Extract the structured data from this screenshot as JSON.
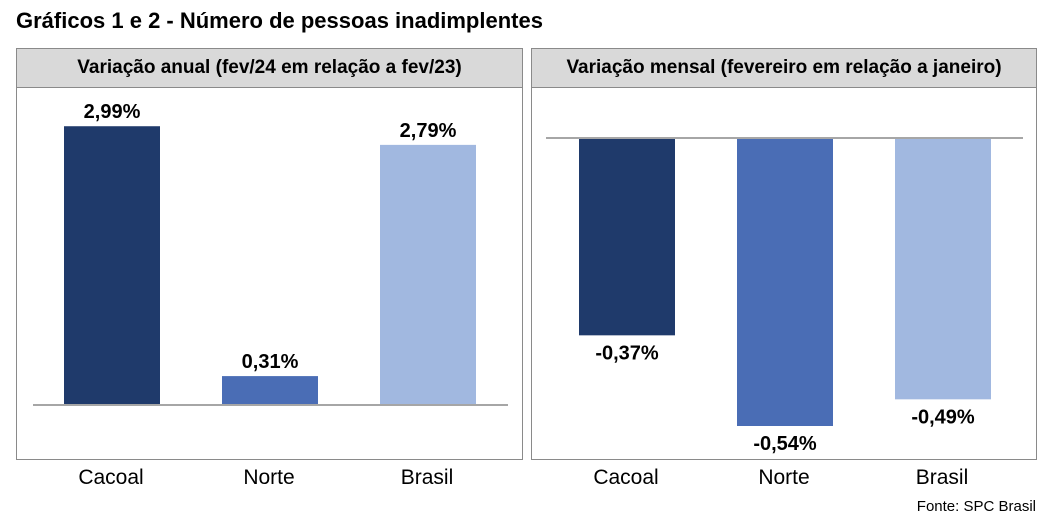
{
  "title": "Gráficos 1 e 2 - Número de pessoas inadimplentes",
  "source": "Fonte: SPC Brasil",
  "colors": {
    "cacoal": "#1f3a6b",
    "norte": "#4a6db5",
    "brasil": "#a1b8e0",
    "axis": "#a6a6a6",
    "header_bg": "#d9d9d9"
  },
  "chart_data": [
    {
      "type": "bar",
      "title": "Variação anual (fev/24 em relação a fev/23)",
      "categories": [
        "Cacoal",
        "Norte",
        "Brasil"
      ],
      "values": [
        2.99,
        0.31,
        2.79
      ],
      "value_labels": [
        "2,99%",
        "0,31%",
        "2,79%"
      ],
      "ylim": [
        0,
        3.4
      ]
    },
    {
      "type": "bar",
      "title": "Variação mensal (fevereiro em relação a janeiro)",
      "categories": [
        "Cacoal",
        "Norte",
        "Brasil"
      ],
      "values": [
        -0.37,
        -0.54,
        -0.49
      ],
      "value_labels": [
        "-0,37%",
        "-0,54%",
        "-0,49%"
      ],
      "ylim": [
        -0.6,
        0.0
      ]
    }
  ]
}
